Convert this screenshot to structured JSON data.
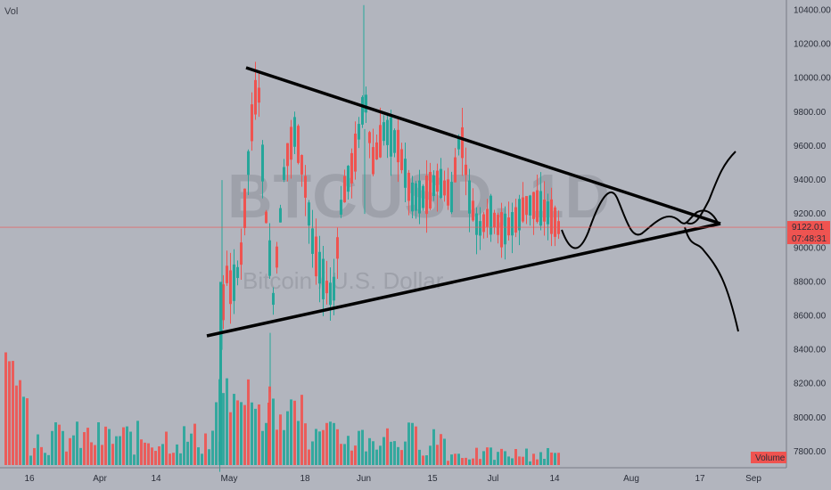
{
  "indicator_label": "Vol",
  "watermark": {
    "symbol": "BTCUSD, 1D",
    "name": "Bitcoin / U.S. Dollar"
  },
  "price_axis": [
    "10400.00",
    "10200.00",
    "10000.00",
    "9800.00",
    "9600.00",
    "9400.00",
    "9200.00",
    "9000.00",
    "8800.00",
    "8600.00",
    "8400.00",
    "8200.00",
    "8000.00",
    "7800.00"
  ],
  "time_axis": [
    "16",
    "Apr",
    "14",
    "May",
    "18",
    "Jun",
    "15",
    "Jul",
    "14",
    "Aug",
    "17",
    "Sep"
  ],
  "last_price": "9122.01",
  "countdown": "07:48:31",
  "volume_badge": "Volume",
  "colors": {
    "up": "#26a69a",
    "down": "#ef5350",
    "background": "#b2b5be",
    "drawing": "#000000",
    "price_line": "#ef5350"
  },
  "chart_data": {
    "type": "candlestick",
    "title": "",
    "y_axis": {
      "min": 7700,
      "max": 10450,
      "scale": "linear"
    },
    "x_axis_ticks": [
      "16",
      "Apr",
      "14",
      "May",
      "18",
      "Jun",
      "15",
      "Jul",
      "14",
      "Aug",
      "17",
      "Sep"
    ],
    "last_price": 9122.01,
    "annotations": {
      "triangle": {
        "upper_line": [
          [
            9600,
            10080
          ],
          [
            9200,
            9160
          ]
        ],
        "lower_line": [
          [
            7300,
            8500
          ],
          [
            9300,
            9160
          ]
        ]
      },
      "projection": "oscillation then breakout up or down"
    }
  }
}
